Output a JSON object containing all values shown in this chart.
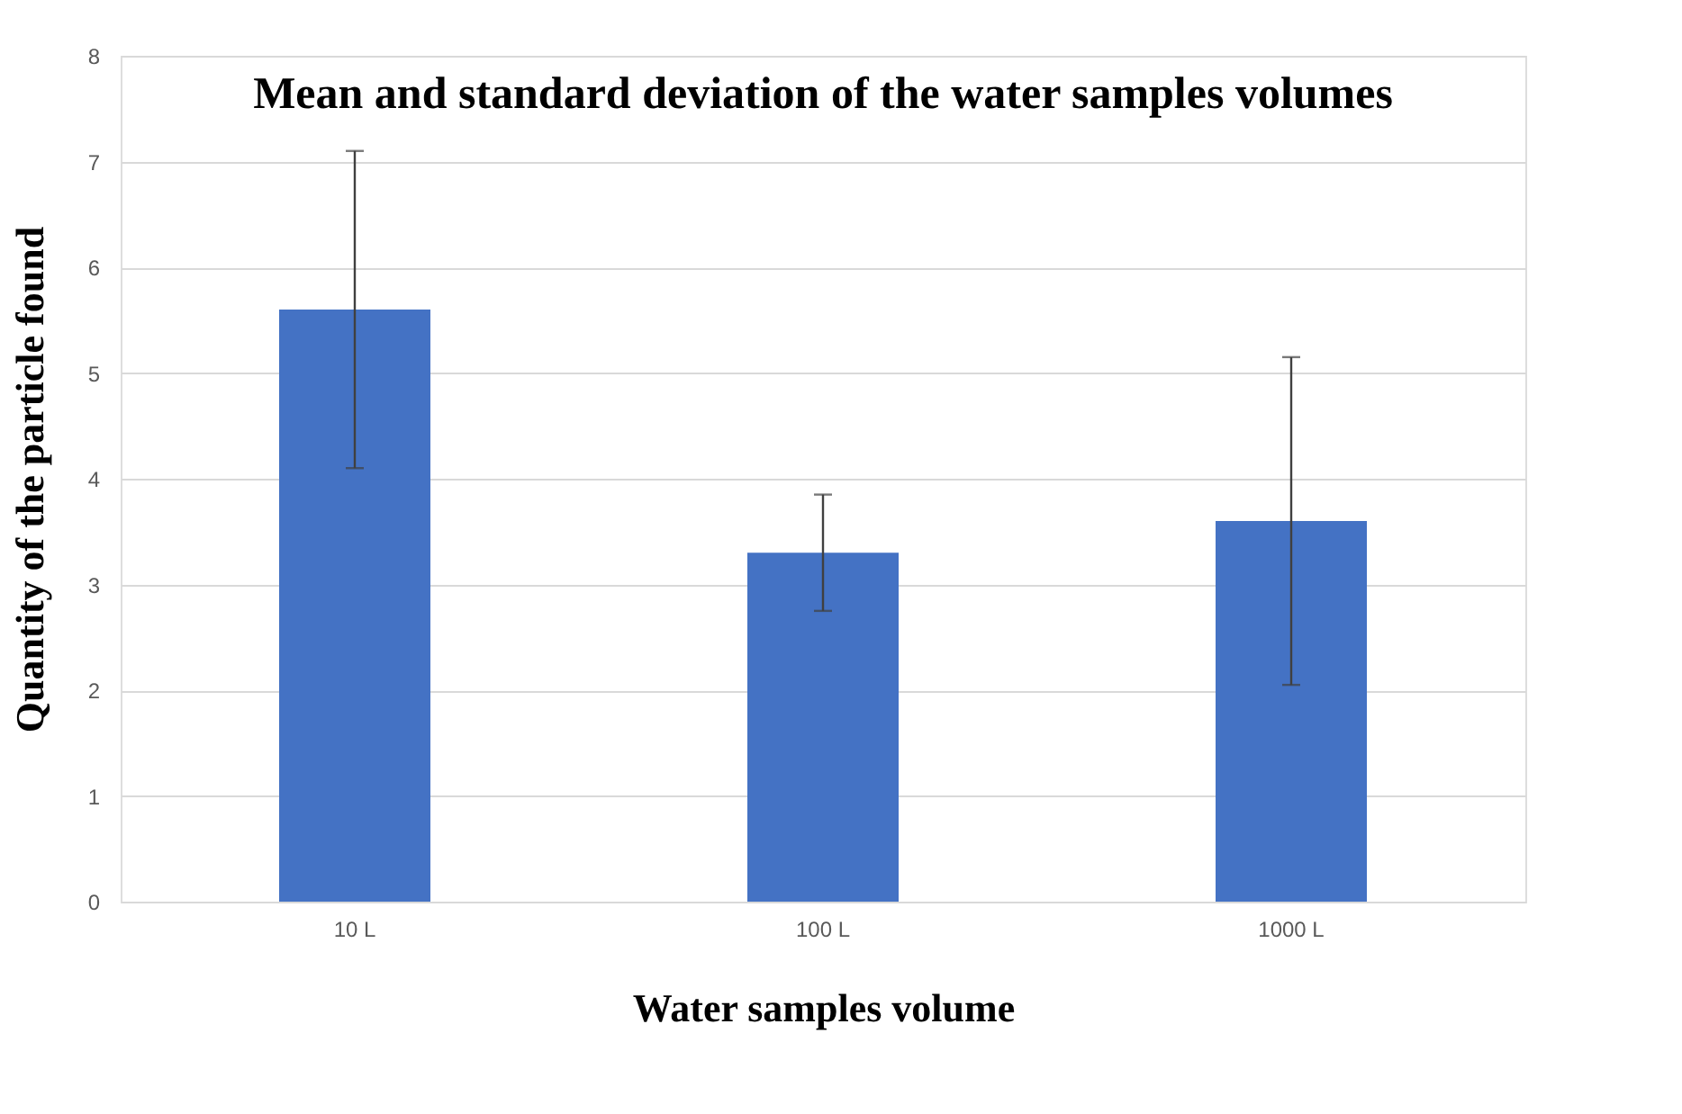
{
  "chart_data": {
    "type": "bar",
    "title": "Mean and standard deviation of the water samples volumes",
    "xlabel": "Water samples volume",
    "ylabel": "Quantity of the particle found",
    "categories": [
      "10 L",
      "100 L",
      "1000 L"
    ],
    "values": [
      5.6,
      3.3,
      3.6
    ],
    "errors": [
      1.5,
      0.55,
      1.55
    ],
    "color": "#4472c4",
    "ylim": [
      0,
      8
    ],
    "yticks": [
      0,
      1,
      2,
      3,
      4,
      5,
      6,
      7,
      8
    ],
    "grid": "y"
  }
}
